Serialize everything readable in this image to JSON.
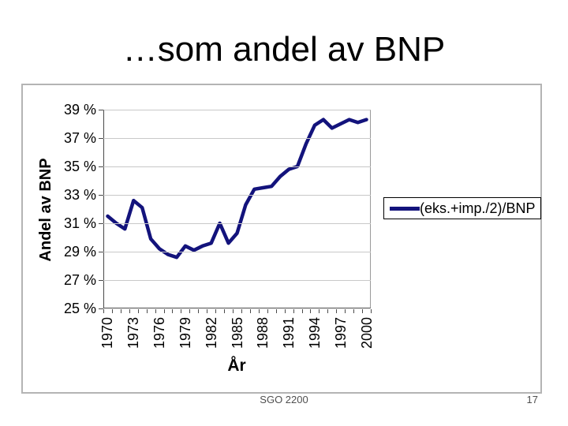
{
  "slide": {
    "title": "…som andel av BNP",
    "footer": "SGO 2200",
    "page_number": "17"
  },
  "colors": {
    "line": "#13137c",
    "gridline": "#c8c8c8",
    "axis": "#4a4a4a",
    "panel_border": "#b4b4b4",
    "text": "#000000",
    "footer_text": "#4f4f4f"
  },
  "chart_data": {
    "type": "line",
    "title": "",
    "xlabel": "År",
    "ylabel": "Andel av BNP",
    "x": [
      1970,
      1971,
      1972,
      1973,
      1974,
      1975,
      1976,
      1977,
      1978,
      1979,
      1980,
      1981,
      1982,
      1983,
      1984,
      1985,
      1986,
      1987,
      1988,
      1989,
      1990,
      1991,
      1992,
      1993,
      1994,
      1995,
      1996,
      1997,
      1998,
      1999,
      2000
    ],
    "series": [
      {
        "name": "(eks.+imp./2)/BNP",
        "values": [
          31.5,
          31.0,
          30.6,
          32.6,
          32.1,
          29.9,
          29.2,
          28.8,
          28.6,
          29.4,
          29.1,
          29.4,
          29.6,
          31.0,
          29.6,
          30.3,
          32.3,
          33.4,
          33.5,
          33.6,
          34.3,
          34.8,
          35.0,
          36.6,
          37.9,
          38.3,
          37.7,
          38.0,
          38.3,
          38.1,
          38.3
        ]
      }
    ],
    "ylim": [
      25,
      39
    ],
    "ytick_step": 2,
    "ytick_labels": [
      "39 %",
      "37 %",
      "35 %",
      "33 %",
      "31 %",
      "29 %",
      "27 %",
      "25 %"
    ],
    "xtick_labels": [
      "1970",
      "1973",
      "1976",
      "1979",
      "1982",
      "1985",
      "1988",
      "1991",
      "1994",
      "1997",
      "2000"
    ],
    "grid": true,
    "legend_position": "right"
  }
}
